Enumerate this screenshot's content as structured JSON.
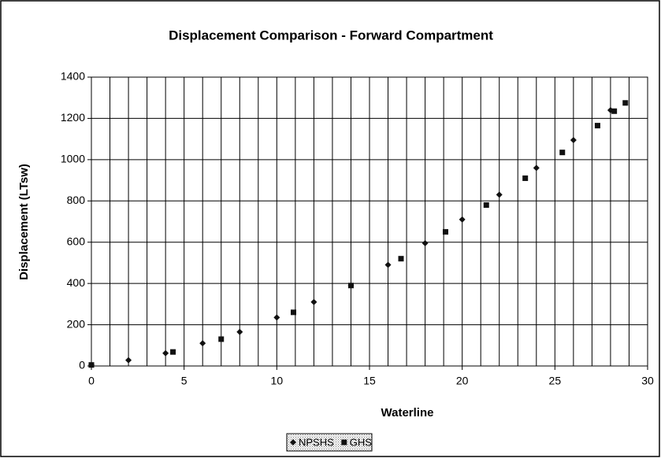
{
  "chart_data": {
    "type": "scatter",
    "title": "Displacement Comparison - Forward Compartment",
    "x_label": "Waterline",
    "y_label": "Displacement (LTsw)",
    "series": [
      {
        "name": "NPSHS",
        "color": "#111111",
        "marker": "diamond",
        "x": [
          0,
          2,
          4,
          6,
          8,
          10,
          12,
          14,
          16,
          18,
          20,
          22,
          24,
          26,
          28
        ],
        "values": [
          5,
          28,
          62,
          110,
          165,
          235,
          310,
          390,
          490,
          595,
          710,
          830,
          960,
          1095,
          1240
        ]
      },
      {
        "name": "GHS",
        "color": "#111111",
        "marker": "square",
        "x": [
          0,
          4.4,
          7,
          10.9,
          14,
          16.7,
          19.1,
          21.3,
          23.4,
          25.4,
          27.3,
          28.2,
          28.8
        ],
        "values": [
          5,
          68,
          130,
          260,
          390,
          520,
          650,
          780,
          910,
          1035,
          1165,
          1235,
          1275
        ]
      }
    ],
    "xlim": [
      0,
      30
    ],
    "xticks": [
      0,
      5,
      10,
      15,
      20,
      25,
      30
    ],
    "xgrid": [
      0,
      1,
      2,
      3,
      4,
      5,
      6,
      7,
      8,
      9,
      10,
      11,
      12,
      13,
      14,
      15,
      16,
      17,
      18,
      19,
      20,
      21,
      22,
      23,
      24,
      25,
      26,
      27,
      28,
      29,
      30
    ],
    "ylim": [
      0,
      1400
    ],
    "yticks": [
      0,
      200,
      400,
      600,
      800,
      1000,
      1200,
      1400
    ],
    "grid": true,
    "legend": "bottom"
  }
}
